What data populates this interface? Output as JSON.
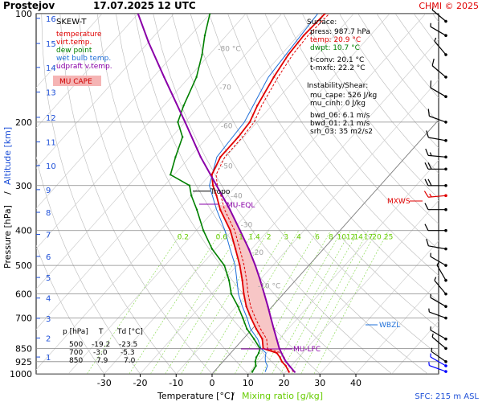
{
  "header": {
    "station": "Prostejov",
    "datetime": "17.07.2025 12 UTC",
    "credit": "CHMI © 2025"
  },
  "footer": {
    "sfc": "SFC: 215 m ASL"
  },
  "chart_data": {
    "type": "skew-t",
    "title": "SKEW-T",
    "xlabel": "Temperature [°C]",
    "xlabel_sep": "/",
    "xlabel2": "Mixing ratio [g/kg]",
    "ylabel": "Pressure [hPa]",
    "ylabel_sep": "/",
    "ylabel2": "Altitude [km]",
    "x_ticks": [
      -30,
      -20,
      -10,
      0,
      10,
      20,
      30,
      40
    ],
    "p_ticks": [
      100,
      200,
      300,
      400,
      500,
      600,
      700,
      850,
      925,
      1000
    ],
    "km_ticks": [
      16,
      15,
      14,
      13,
      12,
      11,
      10,
      9,
      8,
      7,
      6,
      5,
      4,
      3,
      2,
      1
    ],
    "isotherm_labels": [
      {
        "text": "-80 °C",
        "value": -80
      },
      {
        "text": "-70",
        "value": -70
      },
      {
        "text": "-60",
        "value": -60
      },
      {
        "text": "-50",
        "value": -50
      },
      {
        "text": "-40",
        "value": -40
      },
      {
        "text": "-30",
        "value": -30
      },
      {
        "text": "-20",
        "value": -20
      },
      {
        "text": "-10 °C",
        "value": -10
      }
    ],
    "mixing_ratio_labels": [
      "0.2",
      "0.6",
      "1",
      "1.4",
      "2",
      "3",
      "4",
      "6",
      "8",
      "10",
      "12",
      "14",
      "17",
      "20",
      "25"
    ],
    "mixing_ratio_values": [
      0.2,
      0.6,
      1,
      1.4,
      2,
      3,
      4,
      6,
      8,
      10,
      12,
      14,
      17,
      20,
      25
    ],
    "legend": [
      {
        "label": "temperature",
        "color": "#e00000"
      },
      {
        "label": "virt.temp.",
        "color": "#e00000"
      },
      {
        "label": "dew point",
        "color": "#008000"
      },
      {
        "label": "wet bulb temp.",
        "color": "#1e6fd9"
      },
      {
        "label": "udpraft v.temp.",
        "color": "#8a00a8"
      }
    ],
    "cape_label": "MU CAPE",
    "surface": {
      "heading": "Surface:",
      "lines": [
        {
          "text": "press: 987.7 hPa",
          "color": "#000000"
        },
        {
          "text": "temp: 20.9 °C",
          "color": "#e00000"
        },
        {
          "text": "dwpt: 10.7 °C",
          "color": "#008000"
        },
        {
          "text": "t-conv: 20.1 °C",
          "color": "#000000"
        },
        {
          "text": "t-mxfc: 22.2 °C",
          "color": "#000000"
        }
      ]
    },
    "instability": {
      "heading": "Instability/Shear:",
      "lines": [
        "mu_cape: 526 J/kg",
        "mu_cinh: 0 J/kg",
        "bwd_06: 6.1 m/s",
        "bwd_01: 2.1 m/s",
        "srh_03: 35 m2/s2"
      ]
    },
    "level_labels": {
      "tropo": "Tropo",
      "mu_eql": "MU-EQL",
      "mu_lfc": "MU-LFC",
      "wbzl": "WBZL",
      "mxws": "MXWS"
    },
    "table": {
      "headers": [
        "p [hPa]",
        "T",
        "Td [°C]"
      ],
      "rows": [
        [
          "500",
          "-19.2",
          "-23.5"
        ],
        [
          "700",
          "-3.0",
          "-5.3"
        ],
        [
          "850",
          "7.9",
          "7.0"
        ]
      ]
    },
    "temperature": [
      [
        987.7,
        20.9
      ],
      [
        950,
        18.5
      ],
      [
        925,
        16.4
      ],
      [
        900,
        14.8
      ],
      [
        875,
        12.8
      ],
      [
        850,
        7.9
      ],
      [
        800,
        5.3
      ],
      [
        750,
        1.1
      ],
      [
        700,
        -3.0
      ],
      [
        650,
        -7.2
      ],
      [
        600,
        -11.0
      ],
      [
        550,
        -14.8
      ],
      [
        500,
        -19.2
      ],
      [
        450,
        -24.5
      ],
      [
        400,
        -30.5
      ],
      [
        350,
        -38.5
      ],
      [
        320,
        -43.0
      ],
      [
        300,
        -46.5
      ],
      [
        280,
        -49.5
      ],
      [
        250,
        -51.5
      ],
      [
        220,
        -51.5
      ],
      [
        200,
        -52.0
      ],
      [
        180,
        -54.0
      ],
      [
        150,
        -56.5
      ],
      [
        130,
        -58.0
      ],
      [
        115,
        -58.5
      ],
      [
        100,
        -58.0
      ]
    ],
    "dewpoint": [
      [
        987.7,
        10.7
      ],
      [
        950,
        10.2
      ],
      [
        925,
        9.0
      ],
      [
        900,
        8.2
      ],
      [
        875,
        7.8
      ],
      [
        850,
        7.0
      ],
      [
        800,
        3.0
      ],
      [
        750,
        -1.5
      ],
      [
        700,
        -5.3
      ],
      [
        650,
        -9.5
      ],
      [
        600,
        -14.5
      ],
      [
        550,
        -18.5
      ],
      [
        500,
        -23.5
      ],
      [
        450,
        -31.0
      ],
      [
        400,
        -38.0
      ],
      [
        350,
        -45.0
      ],
      [
        320,
        -50.0
      ],
      [
        300,
        -53.0
      ],
      [
        280,
        -61.0
      ],
      [
        250,
        -64.0
      ],
      [
        220,
        -67.0
      ],
      [
        200,
        -72.0
      ],
      [
        180,
        -74.5
      ],
      [
        150,
        -78.0
      ],
      [
        130,
        -82.0
      ],
      [
        115,
        -86.0
      ],
      [
        100,
        -90.0
      ]
    ],
    "wetbulb": [
      [
        987.7,
        14.3
      ],
      [
        950,
        13.4
      ],
      [
        925,
        11.8
      ],
      [
        900,
        10.7
      ],
      [
        875,
        9.8
      ],
      [
        850,
        7.3
      ],
      [
        800,
        4.0
      ],
      [
        750,
        -0.5
      ],
      [
        700,
        -4.1
      ],
      [
        650,
        -8.3
      ],
      [
        600,
        -12.5
      ],
      [
        550,
        -16.3
      ],
      [
        500,
        -20.5
      ],
      [
        450,
        -26.0
      ],
      [
        400,
        -32.0
      ],
      [
        350,
        -39.5
      ],
      [
        300,
        -47.5
      ],
      [
        250,
        -52.5
      ],
      [
        200,
        -53.5
      ],
      [
        150,
        -58.0
      ],
      [
        100,
        -60.0
      ]
    ],
    "parcel": [
      [
        987.7,
        22.5
      ],
      [
        950,
        19.5
      ],
      [
        925,
        17.5
      ],
      [
        900,
        15.8
      ],
      [
        850,
        12.4
      ],
      [
        800,
        9.3
      ],
      [
        750,
        6.0
      ],
      [
        700,
        2.5
      ],
      [
        650,
        -1.2
      ],
      [
        600,
        -5.3
      ],
      [
        550,
        -9.8
      ],
      [
        500,
        -14.9
      ],
      [
        450,
        -20.8
      ],
      [
        400,
        -27.8
      ],
      [
        350,
        -35.8
      ],
      [
        330,
        -39.5
      ],
      [
        300,
        -45.5
      ],
      [
        250,
        -57.0
      ],
      [
        200,
        -70.0
      ],
      [
        150,
        -87.0
      ],
      [
        120,
        -100.0
      ],
      [
        100,
        -110.0
      ]
    ],
    "winds": [
      {
        "p": 985,
        "dir": 290,
        "kt": 5,
        "color": "#0000ff"
      },
      {
        "p": 950,
        "dir": 300,
        "kt": 5,
        "color": "#0000ff"
      },
      {
        "p": 925,
        "dir": 305,
        "kt": 5,
        "color": "#000000"
      },
      {
        "p": 850,
        "dir": 310,
        "kt": 5,
        "color": "#000000"
      },
      {
        "p": 800,
        "dir": 300,
        "kt": 5,
        "color": "#000000"
      },
      {
        "p": 700,
        "dir": 290,
        "kt": 5,
        "color": "#000000"
      },
      {
        "p": 650,
        "dir": 300,
        "kt": 5,
        "color": "#000000"
      },
      {
        "p": 600,
        "dir": 320,
        "kt": 5,
        "color": "#000000"
      },
      {
        "p": 550,
        "dir": 330,
        "kt": 5,
        "color": "#000000"
      },
      {
        "p": 500,
        "dir": 300,
        "kt": 5,
        "color": "#000000"
      },
      {
        "p": 450,
        "dir": 280,
        "kt": 10,
        "color": "#000000"
      },
      {
        "p": 400,
        "dir": 270,
        "kt": 10,
        "color": "#000000"
      },
      {
        "p": 350,
        "dir": 270,
        "kt": 10,
        "color": "#000000"
      },
      {
        "p": 320,
        "dir": 265,
        "kt": 15,
        "color": "#e00000"
      },
      {
        "p": 300,
        "dir": 270,
        "kt": 20,
        "color": "#000000"
      },
      {
        "p": 270,
        "dir": 270,
        "kt": 20,
        "color": "#000000"
      },
      {
        "p": 250,
        "dir": 275,
        "kt": 15,
        "color": "#000000"
      },
      {
        "p": 225,
        "dir": 280,
        "kt": 10,
        "color": "#000000"
      },
      {
        "p": 200,
        "dir": 290,
        "kt": 10,
        "color": "#000000"
      },
      {
        "p": 170,
        "dir": 300,
        "kt": 10,
        "color": "#000000"
      },
      {
        "p": 150,
        "dir": 310,
        "kt": 10,
        "color": "#000000"
      },
      {
        "p": 130,
        "dir": 320,
        "kt": 5,
        "color": "#000000"
      },
      {
        "p": 115,
        "dir": 300,
        "kt": 5,
        "color": "#000000"
      },
      {
        "p": 105,
        "dir": 310,
        "kt": 5,
        "color": "#000000"
      }
    ]
  }
}
